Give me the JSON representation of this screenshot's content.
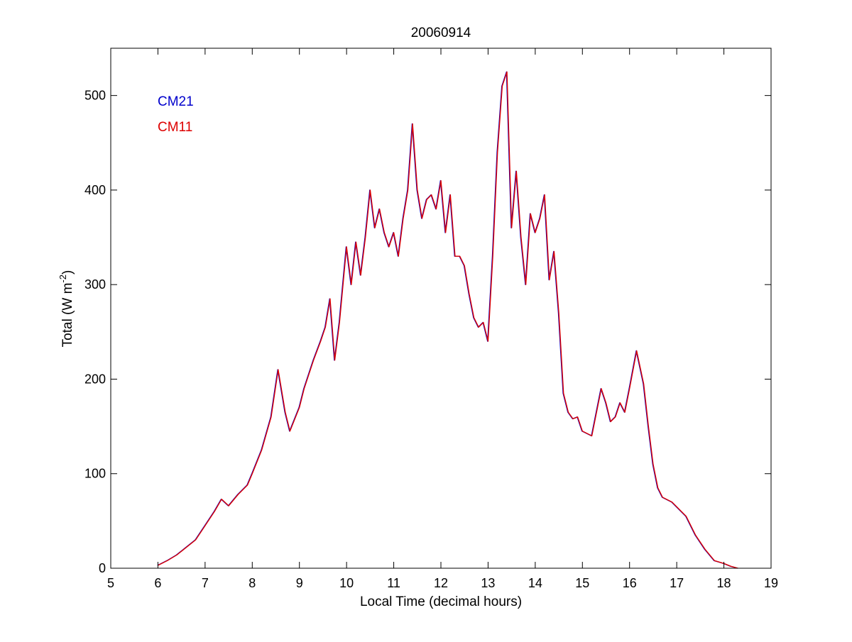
{
  "chart_data": {
    "type": "line",
    "title": "20060914",
    "xlabel": "Local Time (decimal hours)",
    "ylabel": {
      "main": "Total (W m",
      "superscript": "-2",
      "close": ")"
    },
    "xlim": [
      5,
      19
    ],
    "ylim": [
      0,
      550
    ],
    "xticks": [
      5,
      6,
      7,
      8,
      9,
      10,
      11,
      12,
      13,
      14,
      15,
      16,
      17,
      18,
      19
    ],
    "yticks": [
      0,
      100,
      200,
      300,
      400,
      500
    ],
    "grid": false,
    "legend_placement": "top-left",
    "series": [
      {
        "name": "CM21",
        "color": "#0000cc"
      },
      {
        "name": "CM11",
        "color": "#dd0000"
      }
    ],
    "x": [
      6.0,
      6.2,
      6.4,
      6.6,
      6.8,
      7.0,
      7.2,
      7.35,
      7.5,
      7.7,
      7.9,
      8.0,
      8.2,
      8.4,
      8.55,
      8.7,
      8.8,
      9.0,
      9.1,
      9.2,
      9.3,
      9.45,
      9.55,
      9.65,
      9.75,
      9.85,
      10.0,
      10.1,
      10.2,
      10.3,
      10.4,
      10.5,
      10.6,
      10.7,
      10.8,
      10.9,
      11.0,
      11.1,
      11.2,
      11.3,
      11.4,
      11.5,
      11.6,
      11.7,
      11.8,
      11.9,
      12.0,
      12.1,
      12.2,
      12.3,
      12.4,
      12.5,
      12.6,
      12.7,
      12.8,
      12.9,
      13.0,
      13.1,
      13.2,
      13.3,
      13.4,
      13.5,
      13.6,
      13.7,
      13.8,
      13.9,
      14.0,
      14.1,
      14.2,
      14.3,
      14.4,
      14.5,
      14.6,
      14.7,
      14.8,
      14.9,
      15.0,
      15.2,
      15.4,
      15.5,
      15.6,
      15.7,
      15.8,
      15.9,
      16.0,
      16.15,
      16.3,
      16.4,
      16.5,
      16.6,
      16.7,
      16.9,
      17.0,
      17.2,
      17.4,
      17.6,
      17.8,
      18.0,
      18.15,
      18.3
    ],
    "values": [
      3,
      8,
      14,
      22,
      30,
      45,
      60,
      73,
      66,
      78,
      88,
      100,
      125,
      160,
      210,
      165,
      145,
      170,
      190,
      205,
      220,
      240,
      255,
      285,
      220,
      260,
      340,
      300,
      345,
      310,
      350,
      400,
      360,
      380,
      355,
      340,
      355,
      330,
      370,
      400,
      470,
      400,
      370,
      390,
      395,
      380,
      410,
      355,
      395,
      330,
      330,
      320,
      290,
      265,
      255,
      260,
      240,
      330,
      440,
      510,
      525,
      360,
      420,
      350,
      300,
      375,
      355,
      370,
      395,
      305,
      335,
      270,
      185,
      165,
      158,
      160,
      145,
      140,
      190,
      175,
      155,
      160,
      175,
      165,
      190,
      230,
      195,
      150,
      110,
      85,
      75,
      70,
      65,
      55,
      35,
      20,
      8,
      5,
      2,
      0
    ]
  }
}
